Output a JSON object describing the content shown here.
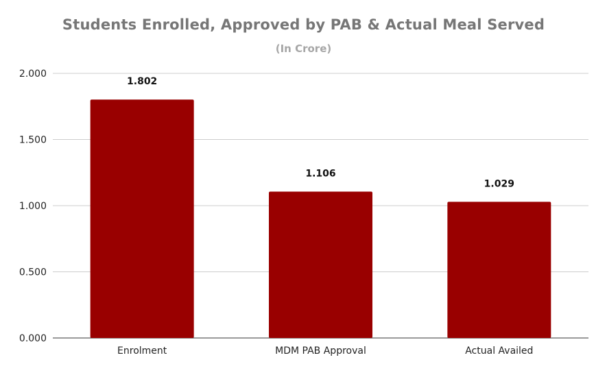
{
  "chart_data": {
    "type": "bar",
    "title": "Students Enrolled, Approved by PAB & Actual Meal Served",
    "subtitle": "(In Crore)",
    "categories": [
      "Enrolment",
      "MDM PAB Approval",
      "Actual Availed"
    ],
    "values": [
      1.802,
      1.106,
      1.029
    ],
    "data_labels": [
      "1.802",
      "1.106",
      "1.029"
    ],
    "ylim": [
      0,
      2
    ],
    "yticks": [
      "0.000",
      "0.500",
      "1.000",
      "1.500",
      "2.000"
    ],
    "ytick_values": [
      0,
      0.5,
      1,
      1.5,
      2
    ],
    "grid": true,
    "legend": "none",
    "bar_color": "#990000"
  }
}
